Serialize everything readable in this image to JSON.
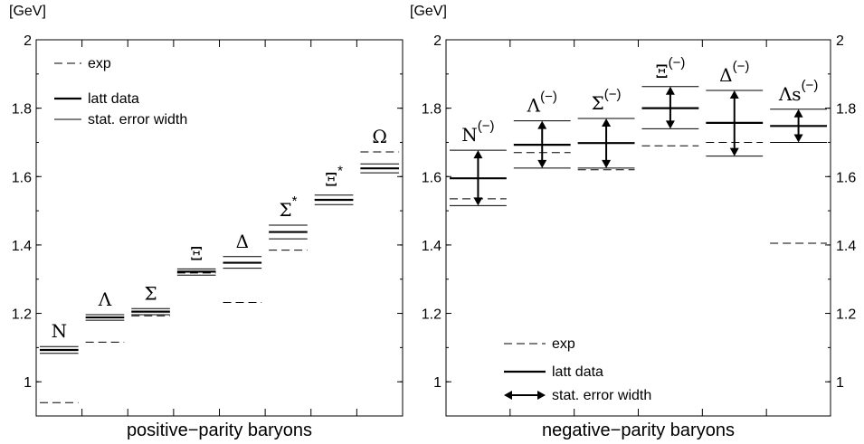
{
  "chart_data": [
    {
      "type": "line",
      "unit_label": "[GeV]",
      "xlabel": "positive−parity baryons",
      "ylim": [
        0.9,
        2.0
      ],
      "yticks": [
        1,
        1.2,
        1.4,
        1.6,
        1.8,
        2
      ],
      "ytick_labels": [
        "1",
        "1.2",
        "1.4",
        "1.6",
        "1.8",
        "2"
      ],
      "legend": {
        "placement": "top-left",
        "entries": [
          {
            "label": "exp",
            "style": "dashed"
          },
          {
            "label": "latt data",
            "style": "thick"
          },
          {
            "label": "stat. error width",
            "style": "thin"
          }
        ]
      },
      "series": [
        {
          "label": "N",
          "sup": "",
          "exp": 0.939,
          "latt": 1.093,
          "err_lo": 1.083,
          "err_hi": 1.103
        },
        {
          "label": "Λ",
          "sup": "",
          "exp": 1.116,
          "latt": 1.188,
          "err_lo": 1.18,
          "err_hi": 1.196
        },
        {
          "label": "Σ",
          "sup": "",
          "exp": 1.193,
          "latt": 1.205,
          "err_lo": 1.196,
          "err_hi": 1.214
        },
        {
          "label": "Ξ",
          "sup": "",
          "exp": 1.318,
          "latt": 1.322,
          "err_lo": 1.312,
          "err_hi": 1.33
        },
        {
          "label": "Δ",
          "sup": "",
          "exp": 1.232,
          "latt": 1.348,
          "err_lo": 1.332,
          "err_hi": 1.366
        },
        {
          "label": "Σ",
          "sup": "*",
          "exp": 1.385,
          "latt": 1.438,
          "err_lo": 1.418,
          "err_hi": 1.458
        },
        {
          "label": "Ξ",
          "sup": "*",
          "exp": 1.533,
          "latt": 1.532,
          "err_lo": 1.518,
          "err_hi": 1.546
        },
        {
          "label": "Ω",
          "sup": "",
          "exp": 1.672,
          "latt": 1.624,
          "err_lo": 1.611,
          "err_hi": 1.637
        }
      ]
    },
    {
      "type": "line",
      "unit_label": "[GeV]",
      "xlabel": "negative−parity baryons",
      "ylim": [
        0.9,
        2.0
      ],
      "yticks": [
        1,
        1.2,
        1.4,
        1.6,
        1.8,
        2
      ],
      "ytick_labels": [
        "1",
        "1.2",
        "1.4",
        "1.6",
        "1.8",
        "2"
      ],
      "legend": {
        "placement": "bottom-left",
        "entries": [
          {
            "label": "exp",
            "style": "dashed"
          },
          {
            "label": "latt data",
            "style": "thick"
          },
          {
            "label": "stat. error width",
            "style": "arrow"
          }
        ]
      },
      "series": [
        {
          "label": "N",
          "sup": "(−)",
          "exp": 1.535,
          "latt": 1.595,
          "err_lo": 1.515,
          "err_hi": 1.677
        },
        {
          "label": "Λ",
          "sup": "(−)",
          "exp": 1.67,
          "latt": 1.693,
          "err_lo": 1.625,
          "err_hi": 1.763
        },
        {
          "label": "Σ",
          "sup": "(−)",
          "exp": 1.62,
          "latt": 1.698,
          "err_lo": 1.625,
          "err_hi": 1.77
        },
        {
          "label": "Ξ",
          "sup": "(−)",
          "exp": 1.69,
          "latt": 1.8,
          "err_lo": 1.74,
          "err_hi": 1.863
        },
        {
          "label": "Δ",
          "sup": "(−)",
          "exp": 1.7,
          "latt": 1.757,
          "err_lo": 1.66,
          "err_hi": 1.852
        },
        {
          "label": "Λs",
          "sup": "(−)",
          "exp": 1.405,
          "latt": 1.748,
          "err_lo": 1.7,
          "err_hi": 1.797
        }
      ]
    }
  ]
}
